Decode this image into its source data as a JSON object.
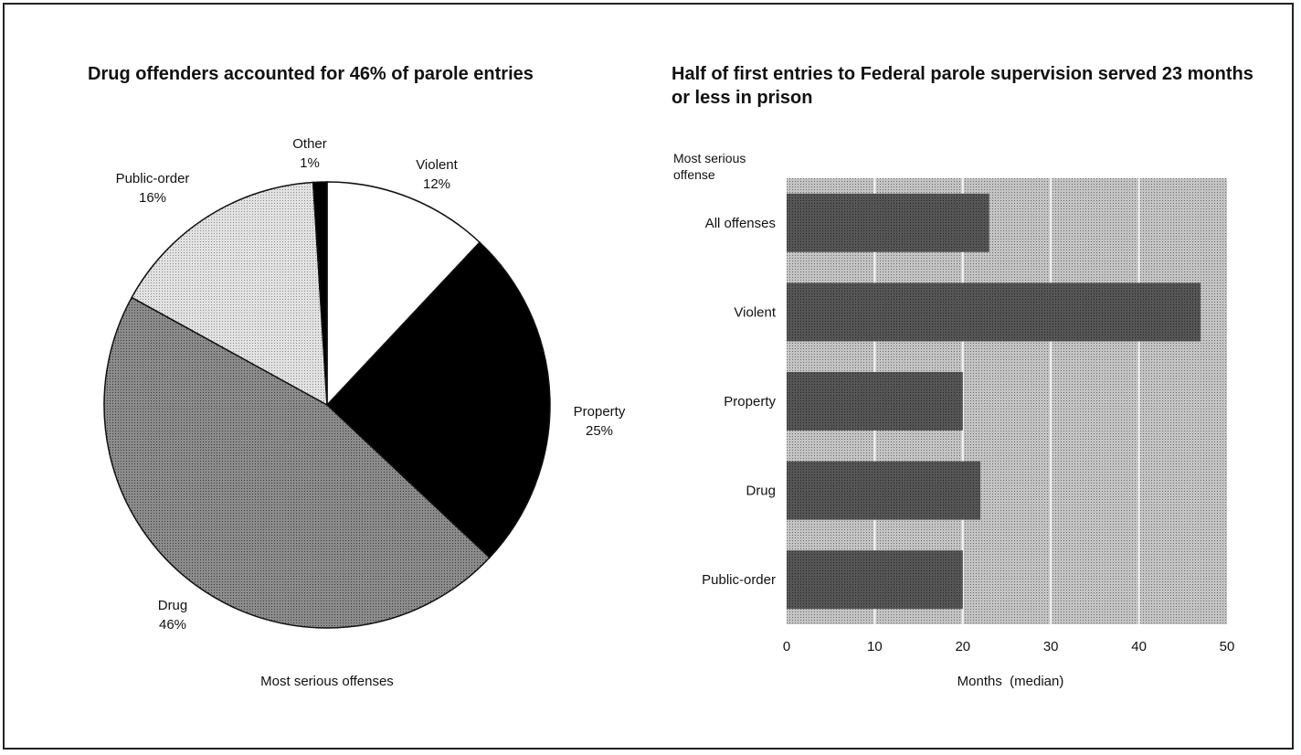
{
  "chart_data": [
    {
      "type": "pie",
      "title": "Drug offenders accounted for 46% of parole entries",
      "xlabel": "Most serious offenses",
      "slices": [
        {
          "label": "Violent",
          "value": 12,
          "value_label": "12%",
          "color": "#ffffff"
        },
        {
          "label": "Property",
          "value": 25,
          "value_label": "25%",
          "color": "#000000"
        },
        {
          "label": "Drug",
          "value": 46,
          "value_label": "46%",
          "color": "#9a9a9a"
        },
        {
          "label": "Public-order",
          "value": 16,
          "value_label": "16%",
          "color": "#d8d8d8"
        },
        {
          "label": "Other",
          "value": 1,
          "value_label": "1%",
          "color": "#000000"
        }
      ]
    },
    {
      "type": "bar",
      "orientation": "horizontal",
      "title": "Half of first entries to Federal parole supervision served 23 months or less in prison",
      "category_axis_title": "Most serious offense",
      "xlabel": "Months  (median)",
      "xlim": [
        0,
        50
      ],
      "xticks": [
        0,
        10,
        20,
        30,
        40,
        50
      ],
      "grid": true,
      "categories": [
        "All offenses",
        "Violent",
        "Property",
        "Drug",
        "Public-order"
      ],
      "values": [
        23,
        47,
        20,
        22,
        20
      ],
      "colors": {
        "bar": "#4a4a4a",
        "background": "#b4b4b4",
        "grid": "#f2f2f2"
      }
    }
  ]
}
